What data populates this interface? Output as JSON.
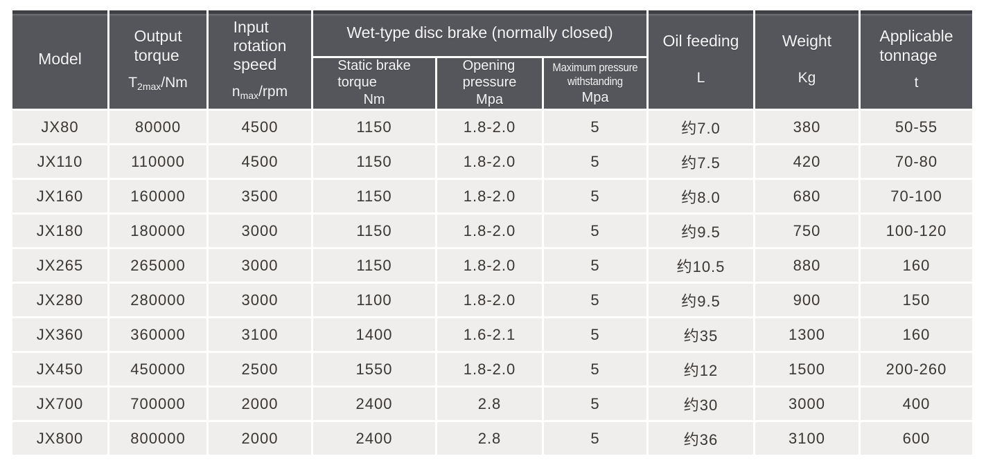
{
  "table": {
    "headers": {
      "model": {
        "label": "Model"
      },
      "output_torque": {
        "label": "Output\ntorque",
        "unit_prefix": "T",
        "unit_sub": "2max",
        "unit_suffix": "/Nm"
      },
      "input_speed": {
        "label": "Input\nrotation\nspeed",
        "unit_prefix": "n",
        "unit_sub": "max",
        "unit_suffix": "/rpm"
      },
      "brake_group": {
        "label": "Wet-type disc brake (normally closed)"
      },
      "static_brake": {
        "label": "Static brake\ntorque",
        "unit": "Nm"
      },
      "opening_pressure": {
        "label": "Opening\npressure",
        "unit": "Mpa"
      },
      "max_pressure": {
        "label": "Maximum pressure\nwithstanding",
        "unit": "Mpa"
      },
      "oil_feeding": {
        "label": "Oil feeding",
        "unit": "L"
      },
      "weight": {
        "label": "Weight",
        "unit": "Kg"
      },
      "tonnage": {
        "label": "Applicable\ntonnage",
        "unit": "t"
      }
    },
    "rows": [
      [
        "JX80",
        "80000",
        "4500",
        "1150",
        "1.8-2.0",
        "5",
        "约7.0",
        "380",
        "50-55"
      ],
      [
        "JX110",
        "110000",
        "4500",
        "1150",
        "1.8-2.0",
        "5",
        "约7.5",
        "420",
        "70-80"
      ],
      [
        "JX160",
        "160000",
        "3500",
        "1150",
        "1.8-2.0",
        "5",
        "约8.0",
        "680",
        "70-100"
      ],
      [
        "JX180",
        "180000",
        "3000",
        "1150",
        "1.8-2.0",
        "5",
        "约9.5",
        "750",
        "100-120"
      ],
      [
        "JX265",
        "265000",
        "3000",
        "1150",
        "1.8-2.0",
        "5",
        "约10.5",
        "880",
        "160"
      ],
      [
        "JX280",
        "280000",
        "3000",
        "1100",
        "1.8-2.0",
        "5",
        "约9.5",
        "900",
        "150"
      ],
      [
        "JX360",
        "360000",
        "3100",
        "1400",
        "1.6-2.1",
        "5",
        "约35",
        "1300",
        "160"
      ],
      [
        "JX450",
        "450000",
        "2500",
        "1550",
        "1.8-2.0",
        "5",
        "约12",
        "1500",
        "200-260"
      ],
      [
        "JX700",
        "700000",
        "2000",
        "2400",
        "2.8",
        "5",
        "约30",
        "3000",
        "400"
      ],
      [
        "JX800",
        "800000",
        "2000",
        "2400",
        "2.8",
        "5",
        "约36",
        "3100",
        "600"
      ]
    ],
    "colors": {
      "header_bg": "#55565B",
      "header_top_strip": "#3E3F44",
      "header_text": "#F4F4F4",
      "cell_bg": "#EFEEEC",
      "cell_text": "#3A3633",
      "divider": "#FFFFFF"
    }
  }
}
